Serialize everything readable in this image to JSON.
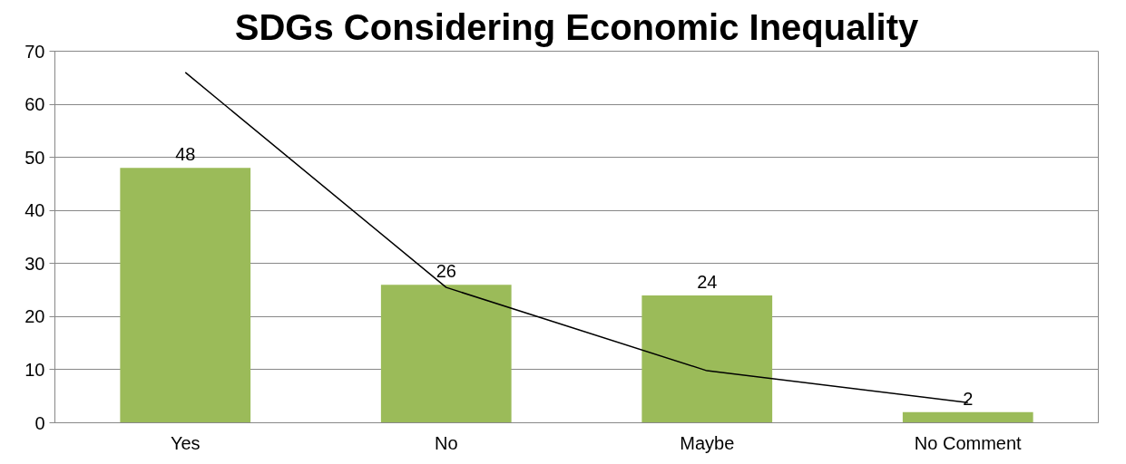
{
  "chart_data": {
    "type": "bar",
    "title": "SDGs Considering Economic Inequality",
    "categories": [
      "Yes",
      "No",
      "Maybe",
      "No Comment"
    ],
    "series": [
      {
        "color": "#9bbb59",
        "values": [
          48,
          26,
          24,
          2
        ],
        "value_labels": [
          "48",
          "26",
          "24",
          "2"
        ]
      },
      {
        "type": "line",
        "color": "#000000",
        "x": [
          "Yes",
          "No",
          "Maybe",
          "No Comment"
        ],
        "values": [
          66,
          25.5,
          9.8,
          3.8
        ]
      }
    ],
    "ylim": [
      0,
      70
    ],
    "yticks": [
      0,
      10,
      20,
      30,
      40,
      50,
      60,
      70
    ],
    "grid": "y"
  }
}
